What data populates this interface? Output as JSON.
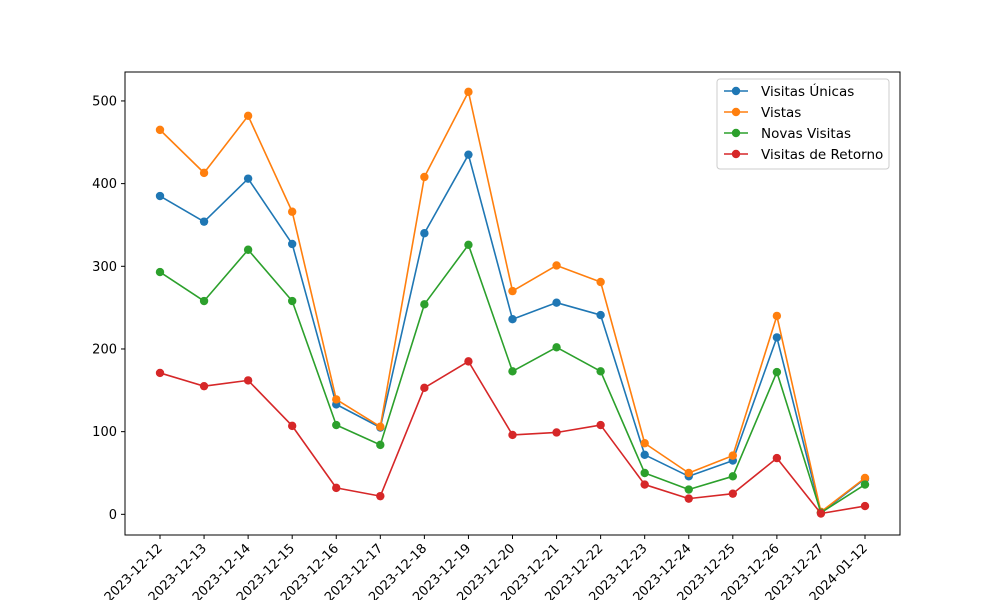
{
  "chart_data": {
    "type": "line",
    "title": "",
    "xlabel": "",
    "ylabel": "",
    "ylim": [
      -25,
      535
    ],
    "yticks": [
      0,
      100,
      200,
      300,
      400,
      500
    ],
    "grid": false,
    "legend_position": "top-right",
    "categories": [
      "2023-12-12",
      "2023-12-13",
      "2023-12-14",
      "2023-12-15",
      "2023-12-16",
      "2023-12-17",
      "2023-12-18",
      "2023-12-19",
      "2023-12-20",
      "2023-12-21",
      "2023-12-22",
      "2023-12-23",
      "2023-12-24",
      "2023-12-25",
      "2023-12-26",
      "2023-12-27",
      "2024-01-12"
    ],
    "series": [
      {
        "name": "Visitas Únicas",
        "color": "#1f77b4",
        "values": [
          385,
          354,
          406,
          327,
          133,
          105,
          340,
          435,
          236,
          256,
          241,
          72,
          46,
          65,
          214,
          2,
          43
        ]
      },
      {
        "name": "Vistas",
        "color": "#ff7f0e",
        "values": [
          465,
          413,
          482,
          366,
          139,
          106,
          408,
          511,
          270,
          301,
          281,
          86,
          50,
          71,
          240,
          3,
          44
        ]
      },
      {
        "name": "Novas Visitas",
        "color": "#2ca02c",
        "values": [
          293,
          258,
          320,
          258,
          108,
          84,
          254,
          326,
          173,
          202,
          173,
          50,
          30,
          46,
          172,
          2,
          36
        ]
      },
      {
        "name": "Visitas de Retorno",
        "color": "#d62728",
        "values": [
          171,
          155,
          162,
          107,
          32,
          22,
          153,
          185,
          96,
          99,
          108,
          36,
          19,
          25,
          68,
          1,
          10
        ]
      }
    ]
  }
}
